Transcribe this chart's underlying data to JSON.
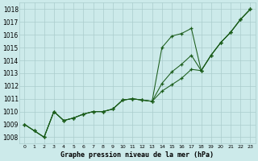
{
  "title": "Graphe pression niveau de la mer (hPa)",
  "background_color": "#cceaea",
  "grid_color": "#aacccc",
  "line_color": "#1a5c1a",
  "x_labels": [
    "0",
    "1",
    "2",
    "3",
    "4",
    "5",
    "6",
    "7",
    "8",
    "9",
    "10",
    "11",
    "12",
    "13",
    "14",
    "15",
    "16",
    "17",
    "18",
    "19",
    "20",
    "21",
    "22",
    "23"
  ],
  "ylim": [
    1007.5,
    1018.5
  ],
  "yticks": [
    1008,
    1009,
    1010,
    1011,
    1012,
    1013,
    1014,
    1015,
    1016,
    1017,
    1018
  ],
  "series1": [
    1009.0,
    1008.5,
    1008.0,
    1010.0,
    1009.3,
    1009.5,
    1009.8,
    1010.0,
    1010.0,
    1010.2,
    1010.9,
    1011.0,
    1010.9,
    1010.8,
    1011.6,
    1012.1,
    1012.6,
    1013.3,
    1013.2,
    1014.4,
    1015.4,
    1016.2,
    1017.2,
    1018.0
  ],
  "series2": [
    1009.0,
    1008.5,
    1008.0,
    1010.0,
    1009.3,
    1009.5,
    1009.8,
    1010.0,
    1010.0,
    1010.2,
    1010.9,
    1011.0,
    1010.9,
    1010.8,
    1012.2,
    1013.1,
    1013.7,
    1014.4,
    1013.2,
    1014.4,
    1015.4,
    1016.2,
    1017.2,
    1018.0
  ],
  "series3": [
    1009.0,
    1008.5,
    1008.0,
    1010.0,
    1009.3,
    1009.5,
    1009.8,
    1010.0,
    1010.0,
    1010.2,
    1010.9,
    1011.0,
    1010.9,
    1010.8,
    1015.0,
    1015.9,
    1016.1,
    1016.5,
    1013.2,
    1014.4,
    1015.4,
    1016.2,
    1017.2,
    1018.0
  ]
}
